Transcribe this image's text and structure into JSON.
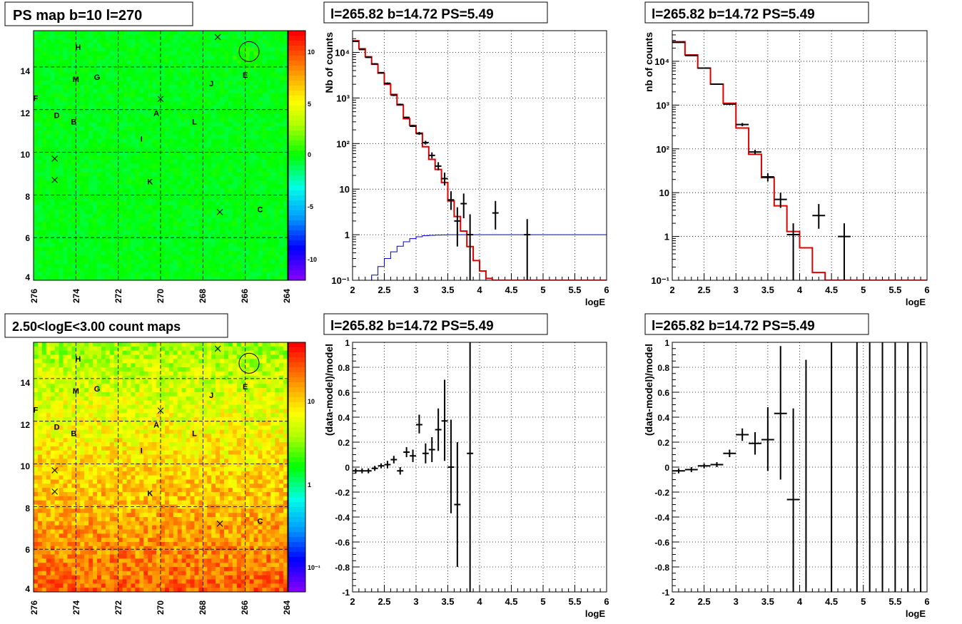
{
  "panels": {
    "map_top": {
      "title": "PS map b=10 l=270",
      "x_ticks": [
        "276",
        "274",
        "272",
        "270",
        "268",
        "266",
        "264"
      ],
      "y_ticks": [
        "4",
        "6",
        "8",
        "10",
        "12",
        "14"
      ],
      "colorbar_ticks": [
        "10",
        "5",
        "0",
        "-5",
        "-10"
      ]
    },
    "map_bottom": {
      "title": "2.50<logE<3.00 count maps",
      "x_ticks": [
        "276",
        "274",
        "272",
        "270",
        "268",
        "266",
        "264"
      ],
      "y_ticks": [
        "4",
        "6",
        "8",
        "10",
        "12",
        "14"
      ],
      "colorbar_ticks": [
        "10",
        "1",
        "10⁻¹"
      ]
    },
    "spec_mid": {
      "title": "l=265.82 b=14.72 PS=5.49"
    },
    "spec_right": {
      "title": "l=265.82 b=14.72 PS=5.49"
    },
    "res_mid": {
      "title": "l=265.82 b=14.72 PS=5.49"
    },
    "res_right": {
      "title": "l=265.82 b=14.72 PS=5.49"
    }
  },
  "chart_data": [
    {
      "id": "ps_map",
      "type": "heatmap",
      "title": "PS map b=10 l=270",
      "xlim": [
        276,
        264
      ],
      "ylim": [
        4,
        15.7
      ],
      "zlim": [
        -12,
        12
      ],
      "annotations": [
        {
          "label": "H",
          "l": 273.9,
          "b": 14.8
        },
        {
          "label": "M",
          "l": 274.0,
          "b": 13.3
        },
        {
          "label": "G",
          "l": 273.0,
          "b": 13.4
        },
        {
          "label": "F",
          "l": 275.9,
          "b": 12.4
        },
        {
          "label": "D",
          "l": 274.9,
          "b": 11.6
        },
        {
          "label": "B",
          "l": 274.1,
          "b": 11.3
        },
        {
          "label": "A",
          "l": 270.2,
          "b": 11.7
        },
        {
          "label": "I",
          "l": 270.9,
          "b": 10.5
        },
        {
          "label": "L",
          "l": 268.4,
          "b": 11.3
        },
        {
          "label": "J",
          "l": 267.6,
          "b": 13.1
        },
        {
          "label": "E",
          "l": 266.0,
          "b": 13.5
        },
        {
          "label": "K",
          "l": 270.5,
          "b": 8.5
        },
        {
          "label": "C",
          "l": 265.3,
          "b": 7.2
        }
      ],
      "crosses": [
        [
          267.3,
          15.4
        ],
        [
          270.0,
          12.5
        ],
        [
          275.0,
          9.7
        ],
        [
          275.0,
          8.7
        ],
        [
          267.2,
          7.2
        ]
      ],
      "circle": {
        "l": 265.82,
        "b": 14.72
      }
    },
    {
      "id": "spectrum_1",
      "type": "line",
      "title": "l=265.82 b=14.72 PS=5.49",
      "xlabel": "logE",
      "ylabel": "Nb of counts",
      "xlim": [
        2,
        6
      ],
      "ylim": [
        0.1,
        30000
      ],
      "yscale": "log",
      "grid": true,
      "x_ticks": [
        "2",
        "2.5",
        "3",
        "3.5",
        "4",
        "4.5",
        "5",
        "5.5",
        "6"
      ],
      "y_ticks": [
        {
          "v": 0.1,
          "label": "10⁻¹"
        },
        {
          "v": 1,
          "label": "1"
        },
        {
          "v": 10,
          "label": "10"
        },
        {
          "v": 100,
          "label": "10²"
        },
        {
          "v": 1000,
          "label": "10³"
        },
        {
          "v": 10000,
          "label": "10⁴"
        }
      ],
      "series": [
        {
          "kind": "model_hist",
          "color": "#dd0000",
          "edges": [
            2,
            2.1,
            2.2,
            2.3,
            2.4,
            2.5,
            2.6,
            2.7,
            2.8,
            2.9,
            3.0,
            3.1,
            3.2,
            3.3,
            3.4,
            3.5,
            3.6,
            3.7,
            3.8,
            3.9,
            4.0,
            4.1,
            4.2,
            6.0
          ],
          "values": [
            18000,
            12000,
            8000,
            5500,
            3500,
            2000,
            1200,
            700,
            350,
            250,
            170,
            85,
            45,
            27,
            14,
            5.5,
            2.5,
            1.2,
            0.55,
            0.27,
            0.16,
            0.11,
            0.08
          ]
        },
        {
          "kind": "ps_hist",
          "color": "#0000cc",
          "edges": [
            2,
            2.2,
            2.3,
            2.4,
            2.5,
            2.6,
            2.7,
            2.8,
            2.9,
            3.0,
            3.1,
            3.2,
            3.3,
            3.4,
            3.5,
            3.6,
            3.7,
            3.8,
            6.0
          ],
          "values": [
            0.07,
            0.1,
            0.13,
            0.2,
            0.3,
            0.42,
            0.56,
            0.7,
            0.82,
            0.9,
            0.95,
            0.97,
            0.98,
            0.99,
            1.0,
            1.0,
            1.0,
            1.0
          ]
        },
        {
          "kind": "data_points",
          "color": "#000000",
          "x": [
            2.05,
            2.15,
            2.25,
            2.35,
            2.45,
            2.55,
            2.65,
            2.75,
            2.85,
            2.95,
            3.05,
            3.15,
            3.25,
            3.35,
            3.45,
            3.55,
            3.65,
            3.75,
            3.85,
            4.25,
            4.75
          ],
          "y": [
            17500,
            11600,
            7800,
            5600,
            3600,
            2100,
            1150,
            720,
            375,
            240,
            165,
            105,
            55,
            32,
            17,
            5.8,
            2.0,
            4.8,
            1.0,
            3.0,
            1.0
          ],
          "ylo": [
            17000,
            11200,
            7500,
            5400,
            3500,
            2000,
            1100,
            690,
            360,
            230,
            155,
            95,
            47,
            26,
            12,
            3.5,
            0.55,
            2.3,
            0.1,
            1.3,
            0.1
          ],
          "yhi": [
            18000,
            12000,
            8100,
            5800,
            3700,
            2200,
            1200,
            750,
            390,
            255,
            180,
            115,
            64,
            39,
            23,
            9.0,
            4.0,
            8.0,
            2.8,
            5.5,
            2.2
          ],
          "xerr": 0.05
        }
      ]
    },
    {
      "id": "spectrum_2",
      "type": "line",
      "title": "l=265.82 b=14.72 PS=5.49",
      "xlabel": "logE",
      "ylabel": "nb of counts",
      "xlim": [
        2,
        6
      ],
      "ylim": [
        0.1,
        50000
      ],
      "yscale": "log",
      "grid": true,
      "x_ticks": [
        "2",
        "2.5",
        "3",
        "3.5",
        "4",
        "4.5",
        "5",
        "5.5",
        "6"
      ],
      "y_ticks": [
        {
          "v": 0.1,
          "label": "10⁻¹"
        },
        {
          "v": 1,
          "label": "1"
        },
        {
          "v": 10,
          "label": "10"
        },
        {
          "v": 100,
          "label": "10²"
        },
        {
          "v": 1000,
          "label": "10³"
        },
        {
          "v": 10000,
          "label": "10⁴"
        }
      ],
      "series": [
        {
          "kind": "model_hist",
          "color": "#dd0000",
          "edges": [
            2,
            2.2,
            2.4,
            2.6,
            2.8,
            3.0,
            3.2,
            3.4,
            3.6,
            3.8,
            4.0,
            4.2,
            4.4,
            6.0
          ],
          "values": [
            28000,
            14000,
            7000,
            3000,
            1100,
            300,
            75,
            22,
            5,
            1.3,
            0.55,
            0.15,
            0.1
          ],
          "note": ""
        },
        {
          "kind": "data_points",
          "color": "#000000",
          "x": [
            2.1,
            2.3,
            2.5,
            2.7,
            2.9,
            3.1,
            3.3,
            3.5,
            3.7,
            3.9,
            4.3,
            4.7
          ],
          "y": [
            27000,
            13500,
            7000,
            3000,
            1050,
            360,
            85,
            23,
            7,
            1.1,
            3.0,
            1.0
          ],
          "ylo": [
            26500,
            13200,
            6800,
            2900,
            1000,
            330,
            75,
            18,
            4.5,
            0.1,
            1.5,
            0.1
          ],
          "yhi": [
            27500,
            13800,
            7200,
            3100,
            1100,
            390,
            95,
            28,
            10,
            2.0,
            5.5,
            2.0
          ],
          "xerr": 0.1
        }
      ]
    },
    {
      "id": "residual_1",
      "type": "scatter",
      "title": "l=265.82 b=14.72 PS=5.49",
      "xlabel": "logE",
      "ylabel": "(data-model)/model",
      "xlim": [
        2,
        6
      ],
      "ylim": [
        -1,
        1
      ],
      "grid": true,
      "x_ticks": [
        "2",
        "2.5",
        "3",
        "3.5",
        "4",
        "4.5",
        "5",
        "5.5",
        "6"
      ],
      "y_ticks": [
        "1",
        "0.8",
        "0.6",
        "0.4",
        "0.2",
        "0",
        "-0.2",
        "-0.4",
        "-0.6",
        "-0.8",
        "-1"
      ],
      "series": [
        {
          "kind": "data_points",
          "color": "#000000",
          "x": [
            2.05,
            2.15,
            2.25,
            2.35,
            2.45,
            2.55,
            2.65,
            2.75,
            2.85,
            2.95,
            3.05,
            3.15,
            3.25,
            3.35,
            3.45,
            3.55,
            3.65,
            3.85
          ],
          "y": [
            -0.03,
            -0.03,
            -0.03,
            -0.01,
            0.01,
            0.02,
            0.06,
            -0.03,
            0.12,
            0.09,
            0.34,
            0.11,
            0.14,
            0.3,
            0.37,
            0.0,
            -0.3,
            0.11
          ],
          "ylo": [
            -0.05,
            -0.05,
            -0.05,
            -0.03,
            -0.01,
            -0.01,
            0.03,
            -0.06,
            0.08,
            0.04,
            0.27,
            0.03,
            0.04,
            0.13,
            0.05,
            -0.37,
            -0.8,
            -1.0
          ],
          "yhi": [
            -0.01,
            -0.01,
            -0.01,
            0.01,
            0.03,
            0.05,
            0.09,
            0.0,
            0.16,
            0.14,
            0.42,
            0.19,
            0.24,
            0.47,
            0.7,
            0.38,
            0.2,
            1.0
          ],
          "xerr": 0.05
        }
      ]
    },
    {
      "id": "residual_2",
      "type": "scatter",
      "title": "l=265.82 b=14.72 PS=5.49",
      "xlabel": "logE",
      "ylabel": "(data-model)/model",
      "xlim": [
        2,
        6
      ],
      "ylim": [
        -1,
        1
      ],
      "grid": true,
      "x_ticks": [
        "2",
        "2.5",
        "3",
        "3.5",
        "4",
        "4.5",
        "5",
        "5.5",
        "6"
      ],
      "y_ticks": [
        "1",
        "0.8",
        "0.6",
        "0.4",
        "0.2",
        "0",
        "-0.2",
        "-0.4",
        "-0.6",
        "-0.8",
        "-1"
      ],
      "series": [
        {
          "kind": "data_points",
          "color": "#000000",
          "x": [
            2.1,
            2.3,
            2.5,
            2.7,
            2.9,
            3.1,
            3.3,
            3.5,
            3.7,
            3.9
          ],
          "y": [
            -0.03,
            -0.02,
            0.01,
            0.02,
            0.11,
            0.26,
            0.19,
            0.22,
            0.43,
            -0.26
          ],
          "ylo": [
            -0.05,
            -0.04,
            -0.01,
            0.0,
            0.08,
            0.21,
            0.1,
            -0.03,
            -0.1,
            -1.0
          ],
          "yhi": [
            -0.01,
            0.0,
            0.03,
            0.04,
            0.14,
            0.31,
            0.28,
            0.48,
            0.97,
            0.47
          ],
          "xerr": 0.1
        },
        {
          "kind": "vertical_error_bars",
          "color": "#000000",
          "x": [
            4.1,
            4.5,
            4.9,
            5.1,
            5.3,
            5.5,
            5.7,
            5.9
          ],
          "ylo": [
            -1,
            -1,
            -1,
            -1,
            -1,
            -1,
            -1,
            -1
          ],
          "yhi": [
            0.86,
            1,
            1,
            1,
            1,
            1,
            1,
            1
          ]
        }
      ]
    }
  ]
}
